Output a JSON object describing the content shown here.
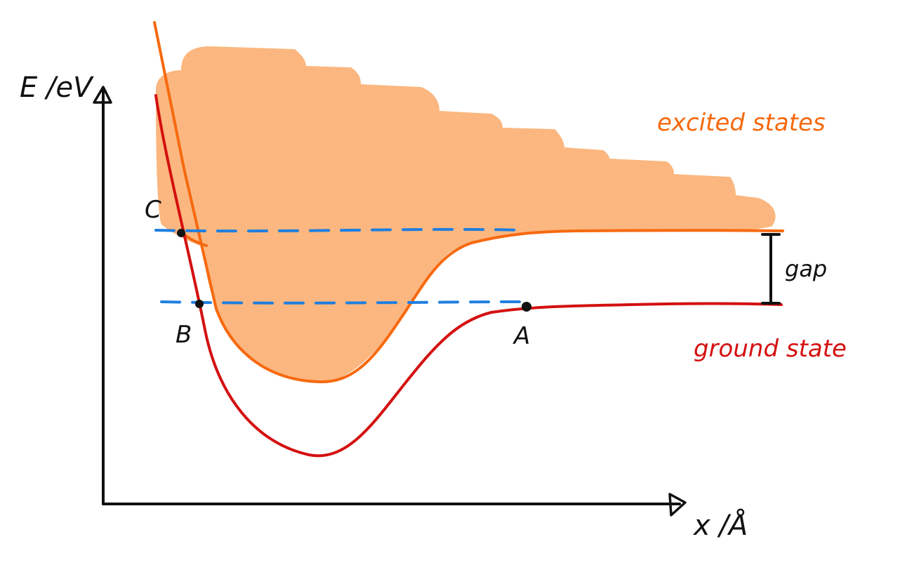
{
  "axes": {
    "y_label": "E /eV",
    "x_label": "x /Å"
  },
  "regions": {
    "excited_label": "excited states",
    "ground_label": "ground state",
    "gap_label": "gap"
  },
  "points": {
    "a": "A",
    "b": "B",
    "c": "C"
  },
  "colors": {
    "excited_fill": "#fbb77f",
    "excited_curve": "#f7690f",
    "ground_curve": "#d41010",
    "dashed_line": "#1f7fe0",
    "ink": "#111111",
    "excited_text": "#f7690f",
    "ground_text": "#d41010"
  }
}
